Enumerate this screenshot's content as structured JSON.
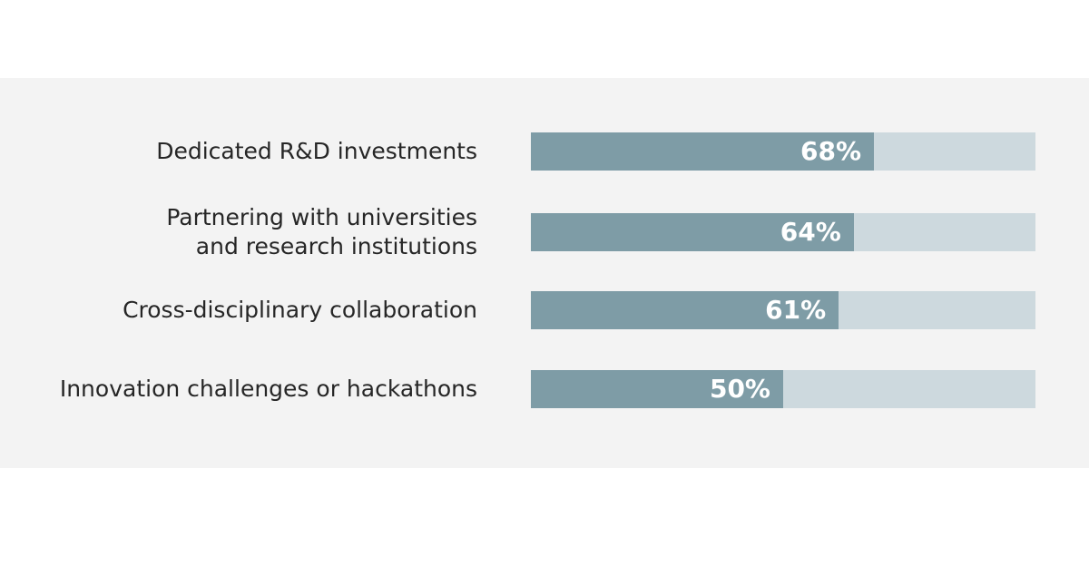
{
  "chart_data": {
    "type": "bar",
    "orientation": "horizontal",
    "categories": [
      "Dedicated R&D investments",
      "Partnering with universities\nand research institutions",
      "Cross-disciplinary collaboration",
      "Innovation challenges or hackathons"
    ],
    "values": [
      68,
      64,
      61,
      50
    ],
    "value_labels": [
      "68%",
      "64%",
      "61%",
      "50%"
    ],
    "xlim": [
      0,
      100
    ],
    "grid": false,
    "legend": "none",
    "colors": {
      "fill": "#7e9ca6",
      "track": "#cdd9de",
      "panel": "#f3f3f3"
    }
  }
}
